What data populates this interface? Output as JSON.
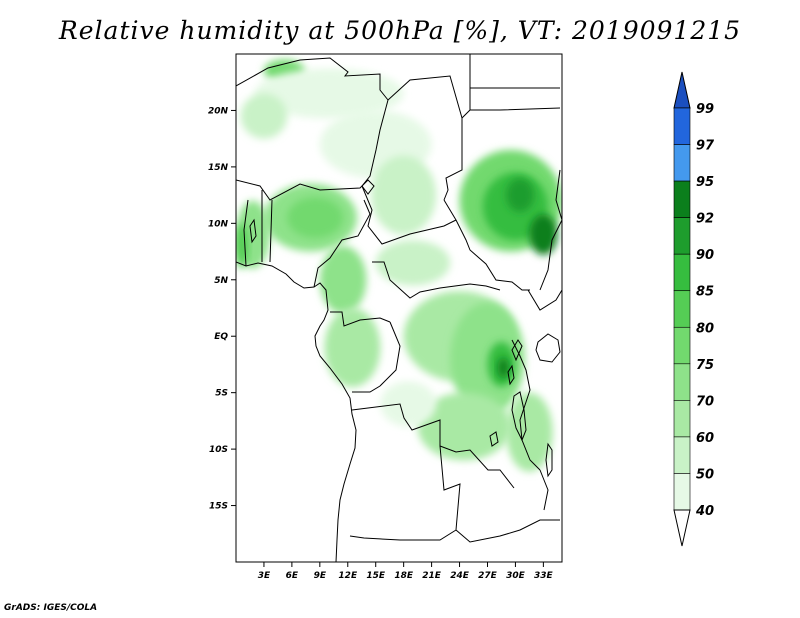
{
  "title": "Relative humidity at 500hPa [%], VT: 2019091215",
  "credit": "GrADS: IGES/COLA",
  "map": {
    "lon_range": [
      0,
      35
    ],
    "lat_range": [
      -20,
      25
    ],
    "lat_ticks": [
      {
        "value": 20,
        "label": "20N"
      },
      {
        "value": 15,
        "label": "15N"
      },
      {
        "value": 10,
        "label": "10N"
      },
      {
        "value": 5,
        "label": "5N"
      },
      {
        "value": 0,
        "label": "EQ"
      },
      {
        "value": -5,
        "label": "5S"
      },
      {
        "value": -10,
        "label": "10S"
      },
      {
        "value": -15,
        "label": "15S"
      }
    ],
    "lon_ticks": [
      {
        "value": 3,
        "label": "3E"
      },
      {
        "value": 6,
        "label": "6E"
      },
      {
        "value": 9,
        "label": "9E"
      },
      {
        "value": 12,
        "label": "12E"
      },
      {
        "value": 15,
        "label": "15E"
      },
      {
        "value": 18,
        "label": "18E"
      },
      {
        "value": 21,
        "label": "21E"
      },
      {
        "value": 24,
        "label": "24E"
      },
      {
        "value": 27,
        "label": "27E"
      },
      {
        "value": 30,
        "label": "30E"
      },
      {
        "value": 33,
        "label": "33E"
      }
    ],
    "humidity_regions": [
      {
        "name": "sahara-northwest",
        "lon": 5.2,
        "lat": 23.5,
        "rx": 2.2,
        "ry": 1.0,
        "rh": 75
      },
      {
        "name": "sahara-north-band",
        "lon": 10.0,
        "lat": 21.5,
        "rx": 8.0,
        "ry": 2.2,
        "rh": 45
      },
      {
        "name": "mali-niger",
        "lon": 3.0,
        "lat": 19.5,
        "rx": 2.5,
        "ry": 2.0,
        "rh": 50
      },
      {
        "name": "central-sahara",
        "lon": 15.0,
        "lat": 17.0,
        "rx": 6.0,
        "ry": 3.0,
        "rh": 45
      },
      {
        "name": "nigeria",
        "lon": 8.0,
        "lat": 10.5,
        "rx": 5.0,
        "ry": 3.0,
        "rh": 70
      },
      {
        "name": "nigeria-core",
        "lon": 8.5,
        "lat": 10.5,
        "rx": 3.0,
        "ry": 1.8,
        "rh": 75
      },
      {
        "name": "benin-togo",
        "lon": 1.8,
        "lat": 9.0,
        "rx": 1.8,
        "ry": 3.0,
        "rh": 70
      },
      {
        "name": "ghana-west",
        "lon": 0.6,
        "lat": 8.0,
        "rx": 0.7,
        "ry": 2.0,
        "rh": 80
      },
      {
        "name": "chad",
        "lon": 18.0,
        "lat": 12.5,
        "rx": 3.5,
        "ry": 3.5,
        "rh": 50
      },
      {
        "name": "sudan-east",
        "lon": 29.5,
        "lat": 12.0,
        "rx": 5.5,
        "ry": 4.5,
        "rh": 75
      },
      {
        "name": "sudan-core",
        "lon": 30.0,
        "lat": 11.5,
        "rx": 3.5,
        "ry": 3.0,
        "rh": 85
      },
      {
        "name": "sudan-peak",
        "lon": 30.5,
        "lat": 12.5,
        "rx": 1.5,
        "ry": 1.5,
        "rh": 90
      },
      {
        "name": "sudan-southeast",
        "lon": 33.0,
        "lat": 9.0,
        "rx": 1.5,
        "ry": 1.8,
        "rh": 92
      },
      {
        "name": "cameroon",
        "lon": 11.5,
        "lat": 5.0,
        "rx": 2.5,
        "ry": 3.0,
        "rh": 70
      },
      {
        "name": "gabon-congo",
        "lon": 12.5,
        "lat": -1.0,
        "rx": 3.0,
        "ry": 3.5,
        "rh": 65
      },
      {
        "name": "car",
        "lon": 19.0,
        "lat": 6.5,
        "rx": 4.0,
        "ry": 2.0,
        "rh": 50
      },
      {
        "name": "congo-basin",
        "lon": 24.0,
        "lat": 0.0,
        "rx": 6.0,
        "ry": 4.0,
        "rh": 65
      },
      {
        "name": "congo-east",
        "lon": 27.0,
        "lat": -2.0,
        "rx": 4.0,
        "ry": 5.0,
        "rh": 70
      },
      {
        "name": "great-lakes",
        "lon": 28.5,
        "lat": -2.5,
        "rx": 1.5,
        "ry": 2.0,
        "rh": 85
      },
      {
        "name": "great-lakes-peak",
        "lon": 28.7,
        "lat": -2.8,
        "rx": 0.6,
        "ry": 0.9,
        "rh": 92
      },
      {
        "name": "drc-south",
        "lon": 24.5,
        "lat": -8.0,
        "rx": 5.0,
        "ry": 3.0,
        "rh": 65
      },
      {
        "name": "tanzania",
        "lon": 31.5,
        "lat": -8.5,
        "rx": 2.5,
        "ry": 3.5,
        "rh": 60
      },
      {
        "name": "drc-southwest",
        "lon": 18.5,
        "lat": -6.0,
        "rx": 3.0,
        "ry": 2.0,
        "rh": 45
      }
    ]
  },
  "colorbar": {
    "levels": [
      40,
      50,
      60,
      70,
      75,
      80,
      85,
      90,
      92,
      95,
      97,
      99
    ],
    "colors": [
      "#ffffff",
      "#e6f9e6",
      "#c9f2c7",
      "#a9e9a4",
      "#8ee28a",
      "#72d96e",
      "#55cd55",
      "#36bd3f",
      "#1e9d2d",
      "#0b7f1c",
      "#4499ee",
      "#2266dd",
      "#1b4fbf"
    ]
  }
}
